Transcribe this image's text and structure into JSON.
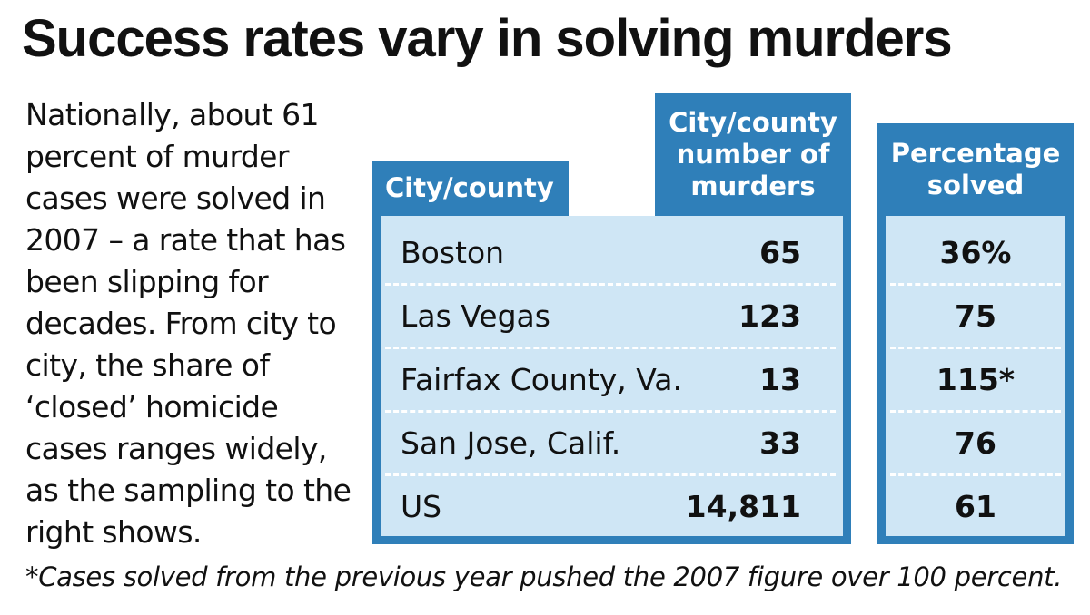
{
  "title": "Success rates vary in solving murders",
  "intro_text": "Nationally, about 61 percent of murder cases were solved in 2007 – a rate that has been slipping for decades. From city to city, the share of ‘closed’ homicide cases ranges widely, as the sampling to the right shows.",
  "footnote": "*Cases solved from the previous year pushed the 2007 figure over 100 percent.",
  "colors": {
    "header_bg": "#2f7fb9",
    "panel_bg": "#cfe6f5",
    "header_text": "#ffffff"
  },
  "chart_data": {
    "type": "table",
    "columns": [
      "City/county",
      "City/county number of murders",
      "Percentage solved"
    ],
    "rows": [
      {
        "city": "Boston",
        "murders": "65",
        "solved": "36%"
      },
      {
        "city": "Las Vegas",
        "murders": "123",
        "solved": "75"
      },
      {
        "city": "Fairfax County, Va.",
        "murders": "13",
        "solved": "115*"
      },
      {
        "city": "San Jose, Calif.",
        "murders": "33",
        "solved": "76"
      },
      {
        "city": "US",
        "murders": "14,811",
        "solved": "61"
      }
    ]
  }
}
